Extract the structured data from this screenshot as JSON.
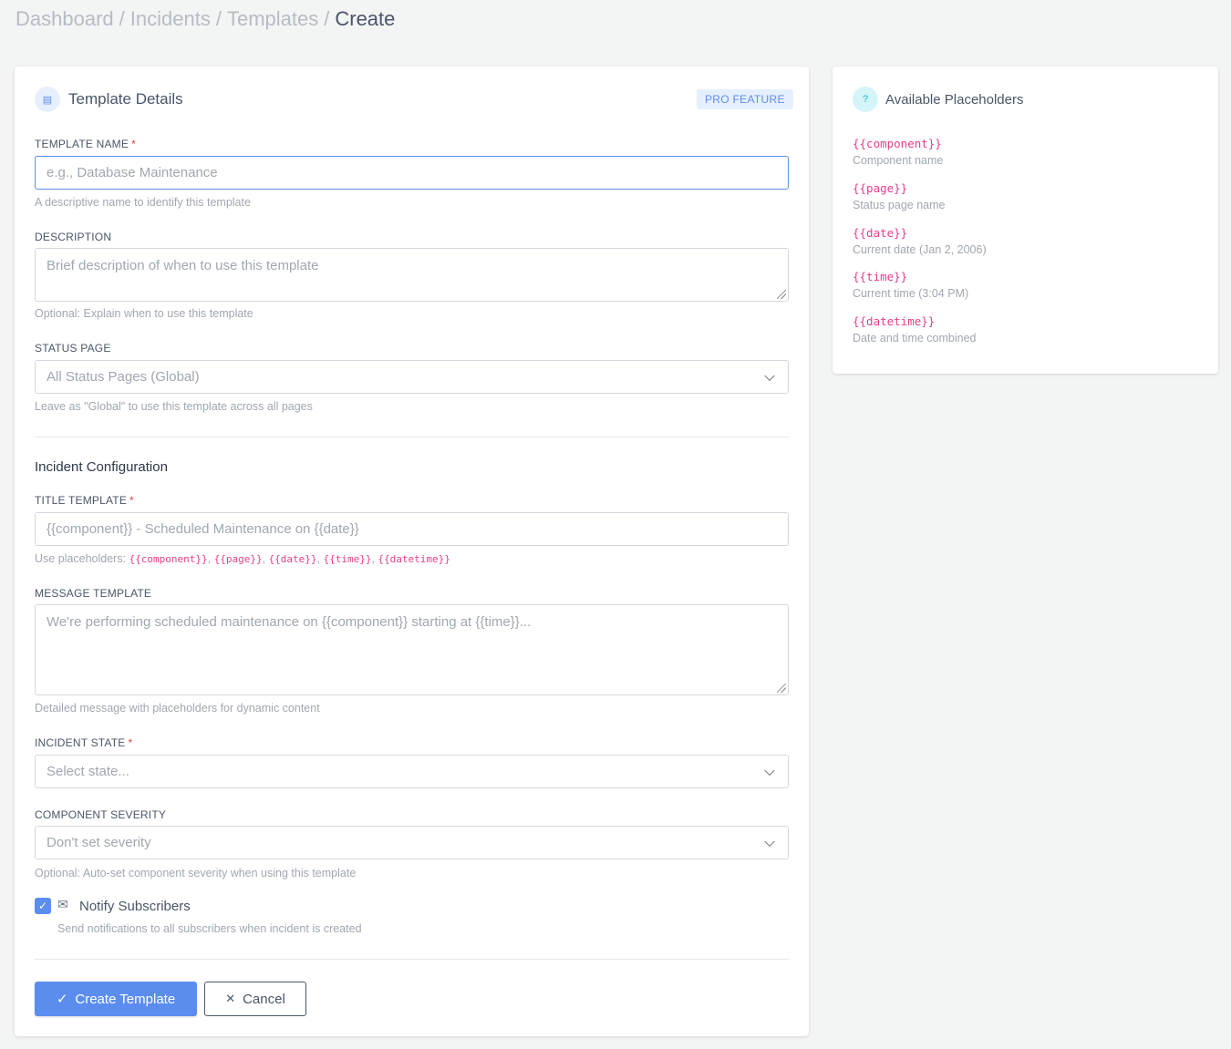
{
  "breadcrumb": [
    "Dashboard",
    "Incidents",
    "Templates",
    "Create"
  ],
  "details": {
    "title": "Template Details",
    "badge": "PRO FEATURE",
    "template_name": {
      "label": "TEMPLATE NAME",
      "required": "*",
      "placeholder": "e.g., Database Maintenance",
      "value": "",
      "help": "A descriptive name to identify this template"
    },
    "description": {
      "label": "DESCRIPTION",
      "placeholder": "Brief description of when to use this template",
      "value": "",
      "help": "Optional: Explain when to use this template"
    },
    "status_page": {
      "label": "STATUS PAGE",
      "value": "All Status Pages (Global)",
      "help": "Leave as \"Global\" to use this template across all pages"
    },
    "section": "Incident Configuration",
    "title_template": {
      "label": "TITLE TEMPLATE",
      "required": "*",
      "placeholder": "{{component}} - Scheduled Maintenance on {{date}}",
      "value": "",
      "help_prefix": "Use placeholders:",
      "help_codes": [
        "{{component}}",
        "{{page}}",
        "{{date}}",
        "{{time}}",
        "{{datetime}}"
      ]
    },
    "message_template": {
      "label": "MESSAGE TEMPLATE",
      "placeholder": "We're performing scheduled maintenance on {{component}} starting at {{time}}...",
      "value": "",
      "help": "Detailed message with placeholders for dynamic content"
    },
    "incident_state": {
      "label": "INCIDENT STATE",
      "required": "*",
      "value": "Select state..."
    },
    "component_severity": {
      "label": "COMPONENT SEVERITY",
      "value": "Don't set severity",
      "help": "Optional: Auto-set component severity when using this template"
    },
    "notify": {
      "label": "Notify Subscribers",
      "checked": true,
      "help": "Send notifications to all subscribers when incident is created"
    },
    "create_label": "Create Template",
    "cancel_label": "Cancel"
  },
  "placeholders": {
    "title": "Available Placeholders",
    "items": [
      {
        "code": "{{component}}",
        "desc": "Component name"
      },
      {
        "code": "{{page}}",
        "desc": "Status page name"
      },
      {
        "code": "{{date}}",
        "desc": "Current date (Jan 2, 2006)"
      },
      {
        "code": "{{time}}",
        "desc": "Current time (3:04 PM)"
      },
      {
        "code": "{{datetime}}",
        "desc": "Date and time combined"
      }
    ]
  },
  "colors": {
    "accent": "#5b8def",
    "code": "#e83e8c",
    "required": "#e53e3e"
  }
}
